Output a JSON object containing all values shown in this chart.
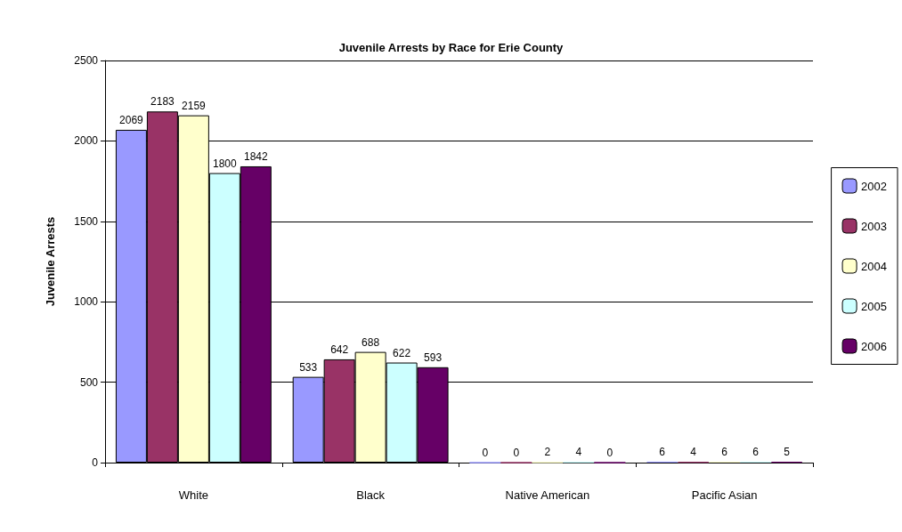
{
  "chart_data": {
    "type": "bar",
    "title": "Juvenile Arrests by Race for Erie County",
    "ylabel": "Juvenile Arrests",
    "categories": [
      "White",
      "Black",
      "Native American",
      "Pacific Asian"
    ],
    "series": [
      {
        "name": "2002",
        "color": "#9999ff",
        "values": [
          2069,
          533,
          0,
          6
        ]
      },
      {
        "name": "2003",
        "color": "#993366",
        "values": [
          2183,
          642,
          0,
          4
        ]
      },
      {
        "name": "2004",
        "color": "#ffffcc",
        "values": [
          2159,
          688,
          2,
          6
        ]
      },
      {
        "name": "2005",
        "color": "#ccffff",
        "values": [
          1800,
          622,
          4,
          6
        ]
      },
      {
        "name": "2006",
        "color": "#660066",
        "values": [
          1842,
          593,
          0,
          5
        ]
      }
    ],
    "ylim": [
      0,
      2500
    ],
    "yticks": [
      0,
      500,
      1000,
      1500,
      2000,
      2500
    ],
    "grid": "y",
    "legend": "right",
    "data_labels": true
  }
}
